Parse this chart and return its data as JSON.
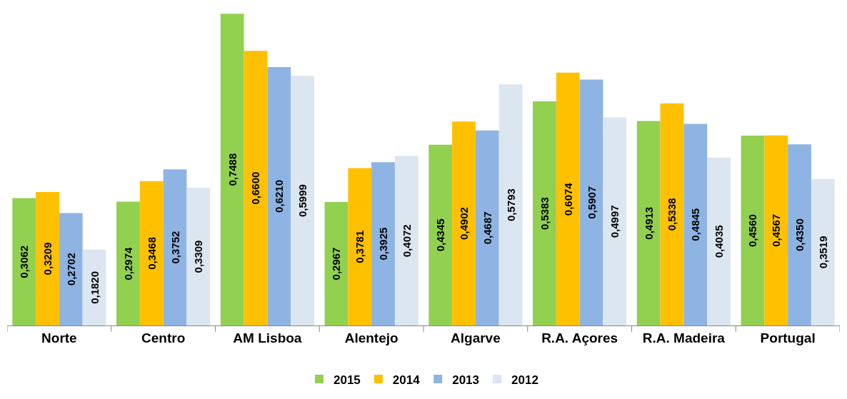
{
  "chart_data": {
    "type": "bar",
    "categories": [
      "Norte",
      "Centro",
      "AM Lisboa",
      "Alentejo",
      "Algarve",
      "R.A. Açores",
      "R.A. Madeira",
      "Portugal"
    ],
    "series": [
      {
        "name": "2015",
        "color": "#92d050",
        "values": [
          0.3062,
          0.2974,
          0.7488,
          0.2967,
          0.4345,
          0.5383,
          0.4913,
          0.456
        ],
        "value_labels": [
          "0,3062",
          "0,2974",
          "0,7488",
          "0,2967",
          "0,4345",
          "0,5383",
          "0,4913",
          "0,4560"
        ]
      },
      {
        "name": "2014",
        "color": "#ffc000",
        "values": [
          0.3209,
          0.3468,
          0.66,
          0.3781,
          0.4902,
          0.6074,
          0.5338,
          0.4567
        ],
        "value_labels": [
          "0,3209",
          "0,3468",
          "0,6600",
          "0,3781",
          "0,4902",
          "0,6074",
          "0,5338",
          "0,4567"
        ]
      },
      {
        "name": "2013",
        "color": "#8eb4e3",
        "values": [
          0.2702,
          0.3752,
          0.621,
          0.3925,
          0.4687,
          0.5907,
          0.4845,
          0.435
        ],
        "value_labels": [
          "0,2702",
          "0,3752",
          "0,6210",
          "0,3925",
          "0,4687",
          "0,5907",
          "0,4845",
          "0,4350"
        ]
      },
      {
        "name": "2012",
        "color": "#dce6f0",
        "values": [
          0.182,
          0.3309,
          0.5999,
          0.4072,
          0.5793,
          0.4997,
          0.4035,
          0.3519
        ],
        "value_labels": [
          "0,1820",
          "0,3309",
          "0,5999",
          "0,4072",
          "0,5793",
          "0,4997",
          "0,4035",
          "0,3519"
        ]
      }
    ],
    "legend": "bottom"
  }
}
